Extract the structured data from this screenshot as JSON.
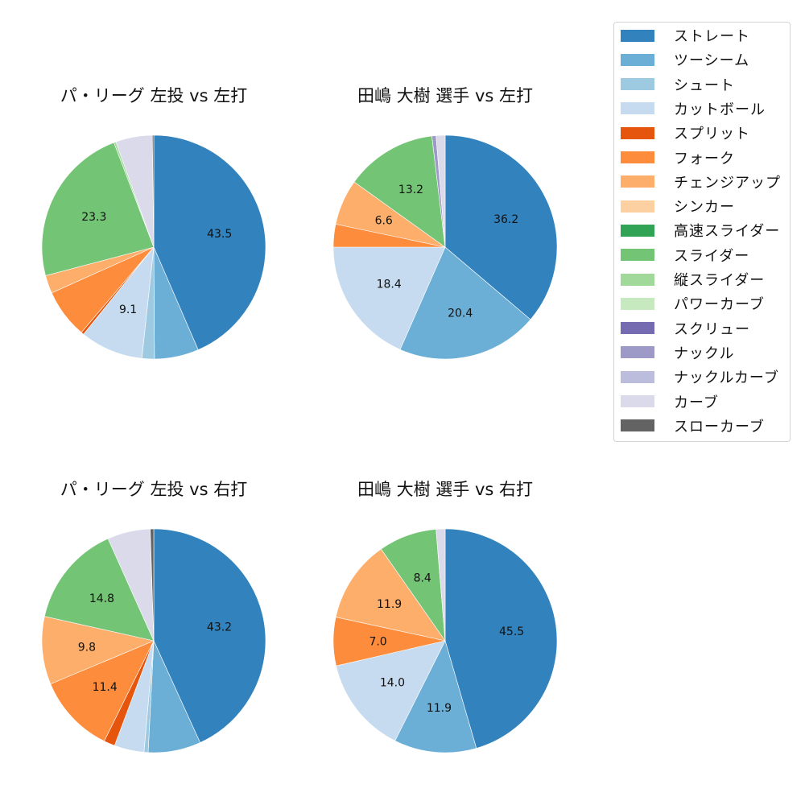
{
  "figure": {
    "legend": {
      "items": [
        {
          "label": "ストレート",
          "color": "#3182bd"
        },
        {
          "label": "ツーシーム",
          "color": "#6baed6"
        },
        {
          "label": "シュート",
          "color": "#9ecae1"
        },
        {
          "label": "カットボール",
          "color": "#c6dbef"
        },
        {
          "label": "スプリット",
          "color": "#e6550d"
        },
        {
          "label": "フォーク",
          "color": "#fd8d3c"
        },
        {
          "label": "チェンジアップ",
          "color": "#fdae6b"
        },
        {
          "label": "シンカー",
          "color": "#fdd0a2"
        },
        {
          "label": "高速スライダー",
          "color": "#31a354"
        },
        {
          "label": "スライダー",
          "color": "#74c476"
        },
        {
          "label": "縦スライダー",
          "color": "#a1d99b"
        },
        {
          "label": "パワーカーブ",
          "color": "#c7e9c0"
        },
        {
          "label": "スクリュー",
          "color": "#756bb1"
        },
        {
          "label": "ナックル",
          "color": "#9e9ac8"
        },
        {
          "label": "ナックルカーブ",
          "color": "#bcbddc"
        },
        {
          "label": "カーブ",
          "color": "#dadaeb"
        },
        {
          "label": "スローカーブ",
          "color": "#636363"
        }
      ]
    }
  },
  "chart_data": [
    {
      "type": "pie",
      "title": "パ・リーグ 左投 vs 左打",
      "start_angle": 90,
      "direction": "clockwise",
      "categories": [
        "ストレート",
        "ツーシーム",
        "シュート",
        "カットボール",
        "スプリット",
        "フォーク",
        "チェンジアップ",
        "スライダー",
        "縦スライダー",
        "カーブ",
        "スローカーブ"
      ],
      "values": [
        43.5,
        6.4,
        1.8,
        9.1,
        0.4,
        7.1,
        2.6,
        23.3,
        0.3,
        5.3,
        0.2
      ],
      "labels_shown": [
        "43.5",
        "",
        "",
        "9.1",
        "",
        "",
        "",
        "23.3",
        "",
        "",
        ""
      ]
    },
    {
      "type": "pie",
      "title": "田嶋 大樹 選手 vs 左打",
      "start_angle": 90,
      "direction": "clockwise",
      "categories": [
        "ストレート",
        "ツーシーム",
        "カットボール",
        "フォーク",
        "チェンジアップ",
        "スライダー",
        "ナックル",
        "カーブ"
      ],
      "values": [
        36.2,
        20.4,
        18.4,
        3.3,
        6.6,
        13.2,
        0.6,
        1.3
      ],
      "labels_shown": [
        "36.2",
        "20.4",
        "18.4",
        "",
        "6.6",
        "13.2",
        "",
        ""
      ]
    },
    {
      "type": "pie",
      "title": "パ・リーグ 左投 vs 右打",
      "start_angle": 90,
      "direction": "clockwise",
      "categories": [
        "ストレート",
        "ツーシーム",
        "シュート",
        "カットボール",
        "スプリット",
        "フォーク",
        "チェンジアップ",
        "スライダー",
        "カーブ",
        "スローカーブ"
      ],
      "values": [
        43.2,
        7.6,
        0.6,
        4.3,
        1.6,
        11.4,
        9.8,
        14.8,
        6.2,
        0.5
      ],
      "labels_shown": [
        "43.2",
        "",
        "",
        "",
        "",
        "11.4",
        "9.8",
        "14.8",
        "",
        ""
      ]
    },
    {
      "type": "pie",
      "title": "田嶋 大樹 選手 vs 右打",
      "start_angle": 90,
      "direction": "clockwise",
      "categories": [
        "ストレート",
        "ツーシーム",
        "カットボール",
        "フォーク",
        "チェンジアップ",
        "スライダー",
        "カーブ"
      ],
      "values": [
        45.5,
        11.9,
        14.0,
        7.0,
        11.9,
        8.4,
        1.3
      ],
      "labels_shown": [
        "45.5",
        "11.9",
        "14.0",
        "7.0",
        "11.9",
        "8.4",
        ""
      ]
    }
  ]
}
